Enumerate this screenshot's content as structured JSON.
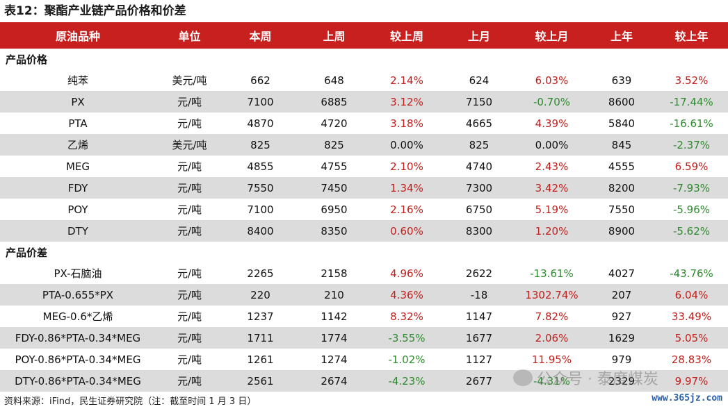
{
  "title": "表12：聚酯产业链产品价格和价差",
  "columns": [
    "原油品种",
    "单位",
    "本周",
    "上周",
    "较上周",
    "上月",
    "较上月",
    "上年",
    "较上年"
  ],
  "sections": [
    {
      "label": "产品价格",
      "rows": [
        {
          "name": "纯苯",
          "unit": "美元/吨",
          "this_week": "662",
          "last_week": "648",
          "wow": "2.14%",
          "last_month": "624",
          "mom": "6.03%",
          "last_year": "639",
          "yoy": "3.52%"
        },
        {
          "name": "PX",
          "unit": "元/吨",
          "this_week": "7100",
          "last_week": "6885",
          "wow": "3.12%",
          "last_month": "7150",
          "mom": "-0.70%",
          "last_year": "8600",
          "yoy": "-17.44%"
        },
        {
          "name": "PTA",
          "unit": "元/吨",
          "this_week": "4870",
          "last_week": "4720",
          "wow": "3.18%",
          "last_month": "4665",
          "mom": "4.39%",
          "last_year": "5840",
          "yoy": "-16.61%"
        },
        {
          "name": "乙烯",
          "unit": "美元/吨",
          "this_week": "825",
          "last_week": "825",
          "wow": "0.00%",
          "last_month": "825",
          "mom": "0.00%",
          "last_year": "845",
          "yoy": "-2.37%"
        },
        {
          "name": "MEG",
          "unit": "元/吨",
          "this_week": "4855",
          "last_week": "4755",
          "wow": "2.10%",
          "last_month": "4740",
          "mom": "2.43%",
          "last_year": "4555",
          "yoy": "6.59%"
        },
        {
          "name": "FDY",
          "unit": "元/吨",
          "this_week": "7550",
          "last_week": "7450",
          "wow": "1.34%",
          "last_month": "7300",
          "mom": "3.42%",
          "last_year": "8200",
          "yoy": "-7.93%"
        },
        {
          "name": "POY",
          "unit": "元/吨",
          "this_week": "7100",
          "last_week": "6950",
          "wow": "2.16%",
          "last_month": "6750",
          "mom": "5.19%",
          "last_year": "7550",
          "yoy": "-5.96%"
        },
        {
          "name": "DTY",
          "unit": "元/吨",
          "this_week": "8400",
          "last_week": "8350",
          "wow": "0.60%",
          "last_month": "8300",
          "mom": "1.20%",
          "last_year": "8900",
          "yoy": "-5.62%"
        }
      ]
    },
    {
      "label": "产品价差",
      "rows": [
        {
          "name": "PX-石脑油",
          "unit": "元/吨",
          "this_week": "2265",
          "last_week": "2158",
          "wow": "4.96%",
          "last_month": "2622",
          "mom": "-13.61%",
          "last_year": "4027",
          "yoy": "-43.76%"
        },
        {
          "name": "PTA-0.655*PX",
          "unit": "元/吨",
          "this_week": "220",
          "last_week": "210",
          "wow": "4.36%",
          "last_month": "-18",
          "mom": "1302.74%",
          "last_year": "207",
          "yoy": "6.04%"
        },
        {
          "name": "MEG-0.6*乙烯",
          "unit": "元/吨",
          "this_week": "1237",
          "last_week": "1142",
          "wow": "8.32%",
          "last_month": "1147",
          "mom": "7.82%",
          "last_year": "927",
          "yoy": "33.49%"
        },
        {
          "name": "FDY-0.86*PTA-0.34*MEG",
          "unit": "元/吨",
          "this_week": "1711",
          "last_week": "1774",
          "wow": "-3.55%",
          "last_month": "1677",
          "mom": "2.06%",
          "last_year": "1629",
          "yoy": "5.05%"
        },
        {
          "name": "POY-0.86*PTA-0.34*MEG",
          "unit": "元/吨",
          "this_week": "1261",
          "last_week": "1274",
          "wow": "-1.02%",
          "last_month": "1127",
          "mom": "11.95%",
          "last_year": "979",
          "yoy": "28.83%"
        },
        {
          "name": "DTY-0.86*PTA-0.34*MEG",
          "unit": "元/吨",
          "this_week": "2561",
          "last_week": "2674",
          "wow": "-4.23%",
          "last_month": "2677",
          "mom": "-4.31%",
          "last_year": "2329",
          "yoy": "9.97%"
        }
      ]
    }
  ],
  "source": "资料来源：iFind，民生证券研究院（注：截至时间 1 月 3 日）",
  "watermark": "公众号 · 泰度煤炭",
  "site": "www.365jz.com",
  "colors": {
    "header_bg": "#c8201e",
    "positive": "#c0201c",
    "negative": "#2e8a2e",
    "zebra": "#dcdcdc"
  }
}
